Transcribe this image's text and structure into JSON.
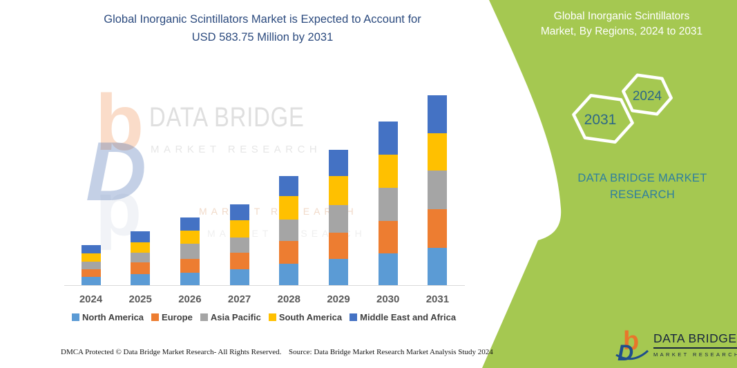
{
  "left_panel": {
    "title_line1": "Global Inorganic Scintillators Market is Expected to Account for",
    "title_line2": "USD 583.75 Million by 2031",
    "footer_left": "DMCA Protected © Data Bridge Market Research-  All Rights Reserved.",
    "footer_source": "Source: Data Bridge Market Research  Market Analysis Study 2024",
    "watermark": {
      "glyph_b": "b",
      "glyph_d": "D",
      "brand": "DATA BRIDGE",
      "sub": "MARKET RESEARCH"
    }
  },
  "right_panel": {
    "heading_line1": "Global Inorganic Scintillators",
    "heading_line2": "Market, By Regions, 2024 to 2031",
    "hexagon_back_year": "2031",
    "hexagon_front_year": "2024",
    "caption_line1": "DATA BRIDGE MARKET",
    "caption_line2": "RESEARCH",
    "logo": {
      "glyph_b": "b",
      "glyph_d": "D",
      "name": "DATA BRIDGE",
      "sub": "MARKET RESEARCH"
    },
    "colors": {
      "panel_green": "#A5C851",
      "heading_text": "#FFFFFF",
      "caption_teal": "#2E7F9F",
      "hexagon_year_text": "#2D6886"
    }
  },
  "chart_data": {
    "type": "bar",
    "stacked": true,
    "title": "Global Inorganic Scintillators Market is Expected to Account for USD 583.75 Million by 2031",
    "unit": "USD Million",
    "categories": [
      "2024",
      "2025",
      "2026",
      "2027",
      "2028",
      "2029",
      "2030",
      "2031"
    ],
    "series": [
      {
        "name": "North America",
        "color": "#5B9BD5",
        "values": [
          25,
          35,
          38,
          49,
          66,
          80,
          97,
          114
        ]
      },
      {
        "name": "Europe",
        "color": "#ED7D31",
        "values": [
          23,
          34,
          42,
          51,
          69,
          82,
          100,
          119
        ]
      },
      {
        "name": "Asia Pacific",
        "color": "#A5A5A5",
        "values": [
          25,
          30,
          47,
          46,
          67,
          85,
          102,
          119
        ]
      },
      {
        "name": "South America",
        "color": "#FFC000",
        "values": [
          25,
          32,
          41,
          54,
          72,
          88,
          102,
          115
        ]
      },
      {
        "name": "Middle East and Africa",
        "color": "#4472C4",
        "values": [
          26,
          34,
          40,
          48,
          61,
          81,
          101,
          117
        ]
      }
    ],
    "totals": [
      124,
      165,
      208,
      248,
      335,
      416,
      502,
      583.75
    ],
    "xlabel": "",
    "ylabel": "",
    "ylim": [
      0,
      600
    ],
    "grid": false,
    "legend_position": "bottom"
  }
}
